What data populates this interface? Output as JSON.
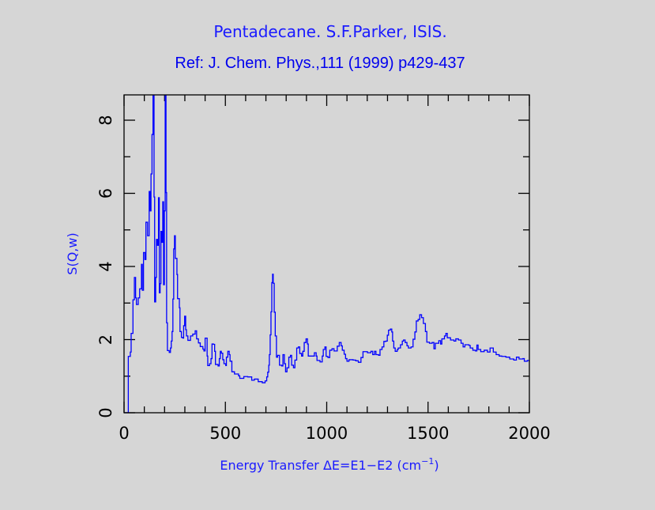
{
  "chart_data": {
    "type": "line",
    "title": "Pentadecane. S.F.Parker, ISIS.",
    "subtitle": "Ref: J. Chem. Phys.,111 (1999) p429-437",
    "xlabel": "Energy Transfer ΔE=E1−E2 (cm",
    "xlabel_sup": "−1",
    "xlabel_close": ")",
    "ylabel": "S(Q,w)",
    "xlim": [
      0,
      2000
    ],
    "ylim": [
      0,
      8.7
    ],
    "xticks": [
      "0",
      "500",
      "1000",
      "1500",
      "2000"
    ],
    "yticks": [
      "0",
      "2",
      "4",
      "6",
      "8"
    ],
    "grid": false,
    "line_color": "#0000ff",
    "series": [
      {
        "name": "Pentadecane",
        "x": [
          0,
          21,
          21,
          31,
          35,
          44,
          51,
          57,
          61,
          70,
          77,
          86,
          90,
          96,
          103,
          108,
          116,
          124,
          128,
          133,
          138,
          143,
          148,
          151,
          156,
          160,
          165,
          170,
          174,
          178,
          182,
          187,
          191,
          195,
          199,
          203,
          207,
          210,
          214,
          223,
          229,
          233,
          237,
          241,
          245,
          249,
          253,
          261,
          264,
          273,
          276,
          283,
          290,
          294,
          299,
          304,
          308,
          315,
          328,
          339,
          351,
          358,
          367,
          376,
          389,
          394,
          400,
          405,
          410,
          413,
          422,
          429,
          434,
          441,
          447,
          451,
          464,
          470,
          475,
          480,
          487,
          493,
          502,
          505,
          512,
          519,
          523,
          532,
          545,
          565,
          571,
          591,
          610,
          630,
          643,
          662,
          682,
          696,
          704,
          709,
          714,
          717,
          721,
          725,
          729,
          733,
          736,
          741,
          746,
          752,
          758,
          767,
          778,
          784,
          791,
          797,
          804,
          813,
          821,
          827,
          836,
          843,
          852,
          860,
          867,
          876,
          882,
          889,
          898,
          905,
          909,
          928,
          939,
          948,
          952,
          967,
          978,
          983,
          991,
          997,
          1006,
          1015,
          1026,
          1036,
          1048,
          1052,
          1062,
          1071,
          1077,
          1086,
          1093,
          1100,
          1110,
          1130,
          1143,
          1156,
          1169,
          1179,
          1201,
          1218,
          1227,
          1236,
          1243,
          1256,
          1263,
          1273,
          1282,
          1292,
          1299,
          1305,
          1314,
          1321,
          1325,
          1331,
          1338,
          1348,
          1353,
          1364,
          1373,
          1379,
          1387,
          1396,
          1403,
          1416,
          1426,
          1435,
          1442,
          1451,
          1459,
          1468,
          1477,
          1487,
          1494,
          1507,
          1520,
          1529,
          1536,
          1553,
          1562,
          1568,
          1581,
          1588,
          1595,
          1611,
          1628,
          1637,
          1650,
          1663,
          1673,
          1682,
          1702,
          1708,
          1721,
          1734,
          1741,
          1747,
          1760,
          1777,
          1793,
          1806,
          1814,
          1822,
          1836,
          1851,
          1864,
          1884,
          1903,
          1923,
          1936,
          1949,
          1968,
          1975,
          1990,
          2000
        ],
        "y": [
          0,
          0,
          1.54,
          1.66,
          2.17,
          3.09,
          3.7,
          3.14,
          2.96,
          3.14,
          3.39,
          4.06,
          3.35,
          4.38,
          4.19,
          5.21,
          4.84,
          6.05,
          5.52,
          6.53,
          7.61,
          10,
          5.9,
          3.03,
          3.7,
          4.74,
          4.58,
          5.88,
          3.28,
          3.53,
          4.96,
          4.66,
          5.77,
          3.5,
          5.52,
          10,
          6.02,
          2.46,
          1.7,
          1.65,
          1.77,
          1.96,
          2.22,
          3.11,
          4.48,
          4.84,
          4.22,
          3.78,
          3.12,
          2.87,
          2.22,
          2.06,
          2.04,
          2.38,
          2.64,
          2.27,
          2.1,
          1.98,
          2.1,
          2.15,
          2.24,
          2.02,
          1.91,
          1.81,
          1.74,
          1.69,
          2.04,
          2.04,
          1.55,
          1.29,
          1.34,
          1.48,
          1.88,
          1.87,
          1.68,
          1.32,
          1.28,
          1.48,
          1.68,
          1.63,
          1.45,
          1.34,
          1.29,
          1.52,
          1.68,
          1.59,
          1.41,
          1.12,
          1.06,
          1.01,
          0.94,
          0.99,
          0.98,
          0.89,
          0.92,
          0.85,
          0.82,
          0.87,
          0.98,
          1.11,
          1.3,
          1.59,
          2.13,
          2.76,
          3.56,
          3.79,
          3.54,
          2.75,
          2.1,
          1.52,
          1.57,
          1.3,
          1.28,
          1.59,
          1.34,
          1.12,
          1.23,
          1.52,
          1.57,
          1.3,
          1.23,
          1.44,
          1.77,
          1.8,
          1.62,
          1.55,
          1.68,
          1.92,
          2.02,
          1.88,
          1.55,
          1.55,
          1.64,
          1.55,
          1.43,
          1.39,
          1.55,
          1.73,
          1.8,
          1.54,
          1.51,
          1.71,
          1.75,
          1.69,
          1.69,
          1.82,
          1.92,
          1.83,
          1.71,
          1.6,
          1.48,
          1.41,
          1.45,
          1.44,
          1.42,
          1.38,
          1.51,
          1.67,
          1.64,
          1.68,
          1.59,
          1.68,
          1.59,
          1.57,
          1.73,
          1.8,
          1.95,
          1.96,
          2.12,
          2.26,
          2.29,
          2.21,
          1.96,
          1.77,
          1.68,
          1.73,
          1.77,
          1.86,
          1.96,
          1.99,
          1.92,
          1.83,
          1.77,
          1.8,
          2.01,
          2.21,
          2.51,
          2.55,
          2.68,
          2.6,
          2.44,
          2.22,
          1.93,
          1.9,
          1.92,
          1.75,
          1.9,
          1.97,
          1.88,
          2.02,
          2.1,
          2.17,
          2.05,
          1.99,
          1.96,
          2.02,
          1.99,
          1.9,
          1.8,
          1.86,
          1.84,
          1.77,
          1.71,
          1.69,
          1.85,
          1.73,
          1.67,
          1.71,
          1.66,
          1.77,
          1.77,
          1.66,
          1.59,
          1.55,
          1.54,
          1.52,
          1.47,
          1.44,
          1.52,
          1.47,
          1.48,
          1.41,
          1.43,
          1.38
        ]
      }
    ]
  }
}
